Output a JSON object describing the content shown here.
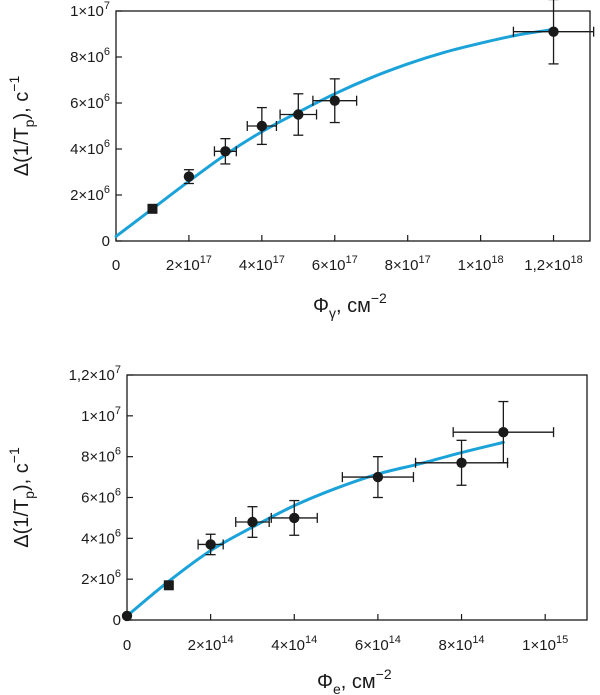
{
  "colors": {
    "fit_line": "#1ba3d9",
    "points": "#1a1a1a",
    "axes": "#1a1a1a"
  },
  "chart_data": [
    {
      "type": "scatter",
      "xlabel": {
        "main": "Φ",
        "sub": "γ",
        "unit": ", см",
        "exp": "−2"
      },
      "ylabel": {
        "main": "Δ(1/T",
        "sub": "p",
        "unit": "), с",
        "exp": "−1"
      },
      "xlim": [
        0,
        1.3e+18
      ],
      "ylim": [
        0,
        10000000.0
      ],
      "xticks": [
        {
          "v": 0,
          "m": "0",
          "e": ""
        },
        {
          "v": 2e+17,
          "m": "2×10",
          "e": "17"
        },
        {
          "v": 4e+17,
          "m": "4×10",
          "e": "17"
        },
        {
          "v": 6e+17,
          "m": "6×10",
          "e": "17"
        },
        {
          "v": 8e+17,
          "m": "8×10",
          "e": "17"
        },
        {
          "v": 1e+18,
          "m": "1×10",
          "e": "18"
        },
        {
          "v": 1.2e+18,
          "m": "1,2×10",
          "e": "18"
        }
      ],
      "yticks": [
        {
          "v": 0,
          "m": "0",
          "e": ""
        },
        {
          "v": 2000000.0,
          "m": "2×10",
          "e": "6"
        },
        {
          "v": 4000000.0,
          "m": "4×10",
          "e": "6"
        },
        {
          "v": 6000000.0,
          "m": "6×10",
          "e": "6"
        },
        {
          "v": 8000000.0,
          "m": "8×10",
          "e": "6"
        },
        {
          "v": 10000000.0,
          "m": "1×10",
          "e": "7"
        }
      ],
      "points": [
        {
          "x": 1e+17,
          "y": 1400000.0,
          "xerr": 0,
          "yerr": 0,
          "square": true
        },
        {
          "x": 2e+17,
          "y": 2800000.0,
          "xerr": 0,
          "yerr": 300000.0
        },
        {
          "x": 3e+17,
          "y": 3900000.0,
          "xerr": 3e+16,
          "yerr": 550000.0
        },
        {
          "x": 4e+17,
          "y": 5000000.0,
          "xerr": 4e+16,
          "yerr": 800000.0
        },
        {
          "x": 5e+17,
          "y": 5500000.0,
          "xerr": 5e+16,
          "yerr": 900000.0
        },
        {
          "x": 6e+17,
          "y": 6100000.0,
          "xerr": 6e+16,
          "yerr": 950000.0
        },
        {
          "x": 1.2e+18,
          "y": 9100000.0,
          "xerr": 1.1e+17,
          "yerr": 1400000.0
        }
      ],
      "fit": {
        "x": [
          0,
          1e+17,
          2e+17,
          3e+17,
          4e+17,
          5e+17,
          6e+17,
          7e+17,
          8e+17,
          9e+17,
          1e+18,
          1.1e+18,
          1.2e+18
        ],
        "y": [
          200000.0,
          1400000.0,
          2600000.0,
          3750000.0,
          4750000.0,
          5600000.0,
          6400000.0,
          7100000.0,
          7700000.0,
          8200000.0,
          8600000.0,
          8950000.0,
          9200000.0
        ]
      }
    },
    {
      "type": "scatter",
      "xlabel": {
        "main": "Φ",
        "sub": "e",
        "unit": ", см",
        "exp": "−2"
      },
      "ylabel": {
        "main": "Δ(1/T",
        "sub": "p",
        "unit": "), с",
        "exp": "−1"
      },
      "xlim": [
        0,
        1100000000000000.0
      ],
      "ylim": [
        0,
        12000000.0
      ],
      "xticks": [
        {
          "v": 0,
          "m": "0",
          "e": ""
        },
        {
          "v": 200000000000000.0,
          "m": "2×10",
          "e": "14"
        },
        {
          "v": 400000000000000.0,
          "m": "4×10",
          "e": "14"
        },
        {
          "v": 600000000000000.0,
          "m": "6×10",
          "e": "14"
        },
        {
          "v": 800000000000000.0,
          "m": "8×10",
          "e": "14"
        },
        {
          "v": 1000000000000000.0,
          "m": "1×10",
          "e": "15"
        }
      ],
      "yticks": [
        {
          "v": 0,
          "m": "0",
          "e": ""
        },
        {
          "v": 2000000.0,
          "m": "2×10",
          "e": "6"
        },
        {
          "v": 4000000.0,
          "m": "4×10",
          "e": "6"
        },
        {
          "v": 6000000.0,
          "m": "6×10",
          "e": "6"
        },
        {
          "v": 8000000.0,
          "m": "8×10",
          "e": "6"
        },
        {
          "v": 10000000.0,
          "m": "1×10",
          "e": "7"
        },
        {
          "v": 12000000.0,
          "m": "1,2×10",
          "e": "7"
        }
      ],
      "points": [
        {
          "x": 0,
          "y": 200000.0,
          "xerr": 0,
          "yerr": 0
        },
        {
          "x": 100000000000000.0,
          "y": 1700000.0,
          "xerr": 0,
          "yerr": 0,
          "square": true
        },
        {
          "x": 200000000000000.0,
          "y": 3700000.0,
          "xerr": 30000000000000.0,
          "yerr": 500000.0
        },
        {
          "x": 300000000000000.0,
          "y": 4800000.0,
          "xerr": 40000000000000.0,
          "yerr": 750000.0
        },
        {
          "x": 400000000000000.0,
          "y": 5000000.0,
          "xerr": 55000000000000.0,
          "yerr": 850000.0
        },
        {
          "x": 600000000000000.0,
          "y": 7000000.0,
          "xerr": 85000000000000.0,
          "yerr": 1000000.0
        },
        {
          "x": 800000000000000.0,
          "y": 7700000.0,
          "xerr": 110000000000000.0,
          "yerr": 1100000.0
        },
        {
          "x": 900000000000000.0,
          "y": 9200000.0,
          "xerr": 120000000000000.0,
          "yerr": 1500000.0
        }
      ],
      "fit": {
        "x": [
          0,
          100000000000000.0,
          200000000000000.0,
          300000000000000.0,
          400000000000000.0,
          500000000000000.0,
          600000000000000.0,
          700000000000000.0,
          800000000000000.0,
          900000000000000.0
        ],
        "y": [
          200000.0,
          1900000.0,
          3400000.0,
          4550000.0,
          5600000.0,
          6450000.0,
          7150000.0,
          7650000.0,
          8200000.0,
          8700000.0
        ]
      }
    }
  ]
}
